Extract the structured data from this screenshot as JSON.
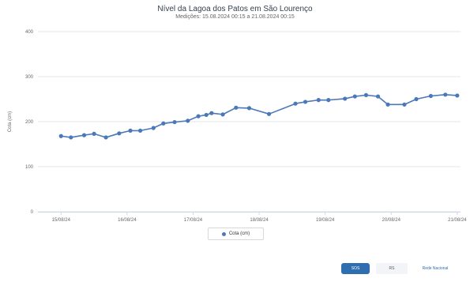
{
  "chart_data": {
    "type": "line",
    "title": "Nível da Lagoa dos Patos em São Lourenço",
    "subtitle": "Medições: 15.08.2024 00:15 a 21.08.2024 00:15",
    "xlabel": "",
    "ylabel": "Cota (cm)",
    "ylim": [
      0,
      400
    ],
    "yticks": [
      "0",
      "100",
      "200",
      "300",
      "400"
    ],
    "xticks": [
      "15/08/24",
      "16/08/24",
      "17/08/24",
      "18/08/24",
      "19/08/24",
      "20/08/24",
      "21/08/24"
    ],
    "grid": true,
    "legend_position": "bottom-center",
    "series": [
      {
        "name": "Cota (cm)",
        "color": "#4a78b8",
        "x": [
          0.0,
          0.15,
          0.35,
          0.5,
          0.68,
          0.88,
          1.05,
          1.2,
          1.4,
          1.55,
          1.72,
          1.92,
          2.08,
          2.2,
          2.28,
          2.45,
          2.65,
          2.85,
          3.15,
          3.55,
          3.7,
          3.9,
          4.05,
          4.3,
          4.45,
          4.62,
          4.8,
          4.95,
          5.2,
          5.38,
          5.6,
          5.82,
          6.0
        ],
        "values": [
          168,
          165,
          170,
          173,
          165,
          174,
          180,
          180,
          186,
          196,
          199,
          202,
          212,
          215,
          219,
          216,
          231,
          230,
          217,
          240,
          244,
          248,
          248,
          251,
          256,
          259,
          256,
          238,
          238,
          250,
          257,
          260,
          258
        ]
      }
    ]
  },
  "legend": {
    "label": "Cota (cm)"
  },
  "logos": {
    "a": "SOS",
    "b": "RS",
    "c": "Rede Nacional"
  }
}
